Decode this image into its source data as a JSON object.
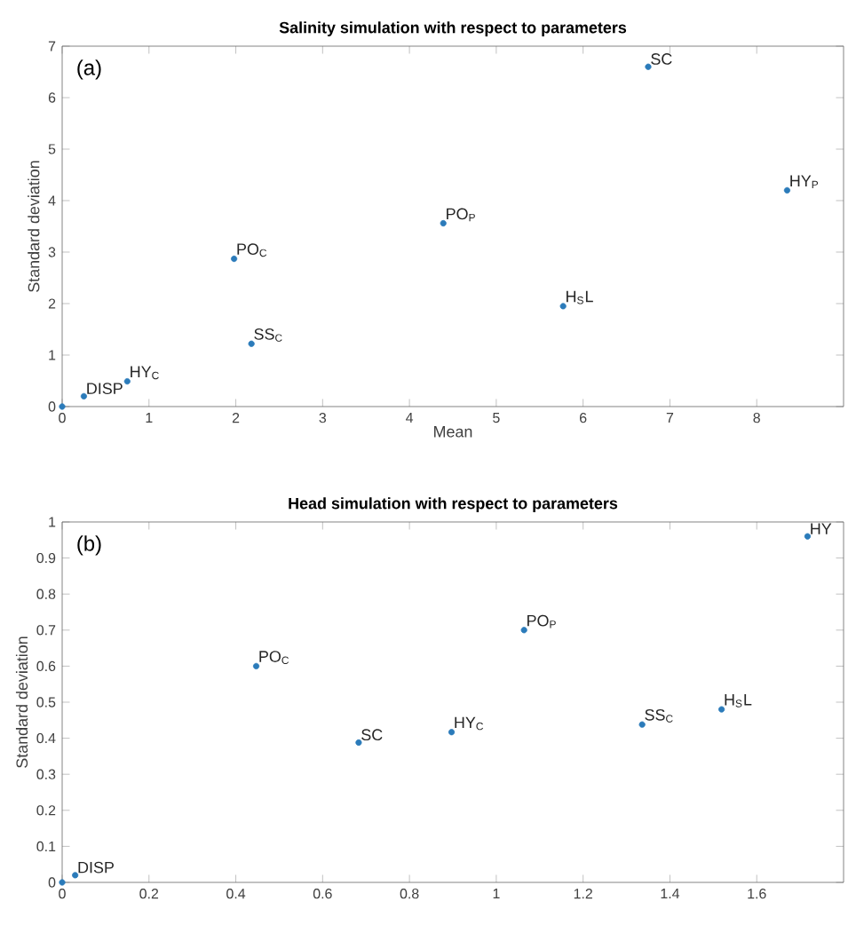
{
  "chart_data": [
    {
      "type": "scatter",
      "title": "Salinity simulation with respect to parameters",
      "xlabel": "Mean",
      "ylabel": "Standard deviation",
      "color": "#2b7bba",
      "x": [
        0,
        0.25,
        0.75,
        2.18,
        1.98,
        4.39,
        5.77,
        6.75,
        8.35
      ],
      "values": [
        0,
        0.2,
        0.49,
        1.22,
        2.87,
        3.56,
        1.95,
        6.6,
        4.2
      ],
      "xlim": [
        0,
        9
      ],
      "ylim": [
        0,
        7
      ],
      "xticks": [
        0,
        1,
        2,
        3,
        4,
        5,
        6,
        7,
        8
      ],
      "yticks": [
        0,
        1,
        2,
        3,
        4,
        5,
        6,
        7
      ],
      "annotations": [
        "(a)",
        {
          "text": "DISP",
          "x": 0.25,
          "y": 0.2
        },
        {
          "text": "HY$_{C}$",
          "x": 0.75,
          "y": 0.49
        },
        {
          "text": "SS$_{C}$",
          "x": 2.18,
          "y": 1.22
        },
        {
          "text": "PO$_{C}$",
          "x": 1.98,
          "y": 2.87
        },
        {
          "text": "PO$_{P}$",
          "x": 4.39,
          "y": 3.56
        },
        {
          "text": "H$_{S}$L",
          "x": 5.77,
          "y": 1.95
        },
        {
          "text": "SC",
          "x": 6.75,
          "y": 6.6
        },
        {
          "text": "HY$_{P}$",
          "x": 8.35,
          "y": 4.2
        }
      ]
    },
    {
      "type": "scatter",
      "title": "Head simulation with respect to parameters",
      "ylabel": "Standard deviation",
      "color": "#2b7bba",
      "x": [
        0,
        0.03,
        0.447,
        0.683,
        0.897,
        1.064,
        1.336,
        1.519,
        1.717
      ],
      "values": [
        0,
        0.02,
        0.6,
        0.388,
        0.417,
        0.7,
        0.438,
        0.48,
        0.96
      ],
      "xlim": [
        0,
        1.8
      ],
      "ylim": [
        0,
        1
      ],
      "xticks": [
        0,
        0.2,
        0.4,
        0.6,
        0.8,
        1,
        1.2,
        1.4,
        1.6
      ],
      "yticks": [
        0,
        0.1,
        0.2,
        0.3,
        0.4,
        0.5,
        0.6,
        0.7,
        0.8,
        0.9,
        1
      ],
      "annotations": [
        "(b)",
        {
          "text": "DISP",
          "x": 0.03,
          "y": 0.02
        },
        {
          "text": "PO$_{C}$",
          "x": 0.447,
          "y": 0.6
        },
        {
          "text": "SC",
          "x": 0.683,
          "y": 0.388
        },
        {
          "text": "HY$_{C}$",
          "x": 0.897,
          "y": 0.417
        },
        {
          "text": "PO$_{P}$",
          "x": 1.064,
          "y": 0.7
        },
        {
          "text": "SS$_{C}$",
          "x": 1.336,
          "y": 0.438
        },
        {
          "text": "H$_{S}$L",
          "x": 1.519,
          "y": 0.48
        },
        {
          "text": "HY",
          "x": 1.717,
          "y": 0.96
        }
      ]
    }
  ]
}
